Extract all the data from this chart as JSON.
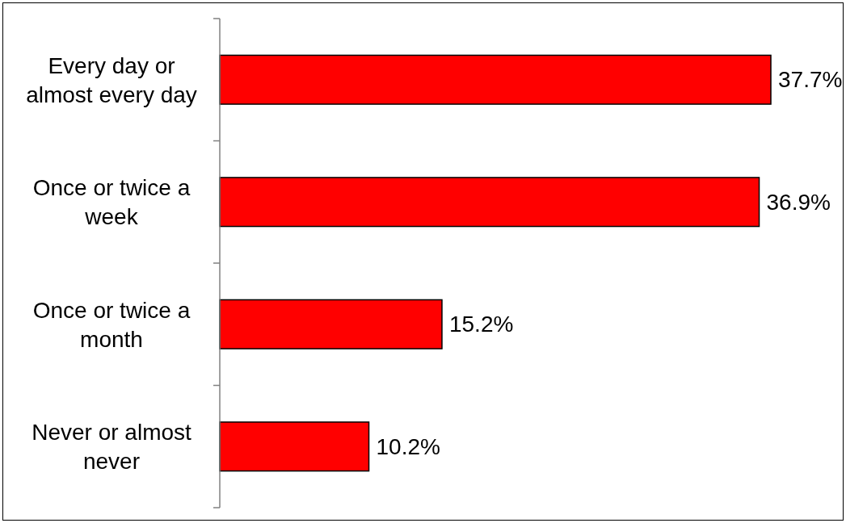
{
  "chart_data": {
    "type": "bar",
    "orientation": "horizontal",
    "categories": [
      "Every day or almost every day",
      "Once or twice a week",
      "Once or twice a month",
      "Never or almost never"
    ],
    "values": [
      37.7,
      36.9,
      15.2,
      10.2
    ],
    "color": "#ff0000",
    "value_labels": [
      "37.7%",
      "36.9%",
      "15.2%",
      "10.2%"
    ]
  }
}
